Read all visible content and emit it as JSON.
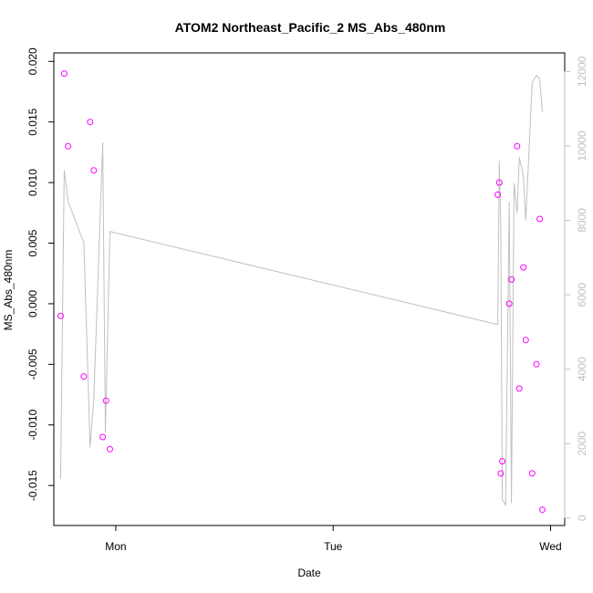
{
  "chart_data": {
    "type": "scatter",
    "title": "ATOM2 Northeast_Pacific_2 MS_Abs_480nm",
    "xlabel": "Date",
    "ylabel": "MS_Abs_480nm",
    "x_tick_labels": [
      "Mon",
      "Tue",
      "Wed"
    ],
    "x_ticks_days": [
      0,
      1,
      2
    ],
    "xlim_days": [
      -0.285,
      2.065
    ],
    "ylim": [
      -0.0183,
      0.0207
    ],
    "y_ticks": [
      -0.015,
      -0.01,
      -0.005,
      0.0,
      0.005,
      0.01,
      0.015,
      0.02
    ],
    "y_tick_labels": [
      "-0.015",
      "-0.010",
      "-0.005",
      "0.000",
      "0.005",
      "0.010",
      "0.015",
      "0.020"
    ],
    "y2lim": [
      -200,
      12500
    ],
    "y2_ticks": [
      0,
      2000,
      4000,
      6000,
      8000,
      10000,
      12000
    ],
    "y2_tick_labels": [
      "0",
      "2000",
      "4000",
      "6000",
      "8000",
      "10000",
      "12000"
    ],
    "grid": false,
    "series": [
      {
        "kind": "points",
        "color": "#ff00ff",
        "x_days": [
          -0.254,
          -0.237,
          -0.219,
          -0.147,
          -0.118,
          -0.101,
          -0.06,
          -0.045,
          -0.027,
          1.757,
          1.764,
          1.771,
          1.778,
          1.81,
          1.82,
          1.846,
          1.856,
          1.875,
          1.886,
          1.915,
          1.935,
          1.95,
          1.962
        ],
        "y": [
          -0.001,
          0.019,
          0.013,
          -0.006,
          0.015,
          0.011,
          -0.011,
          -0.008,
          -0.012,
          0.009,
          0.01,
          -0.014,
          -0.013,
          0.0,
          0.002,
          0.013,
          -0.007,
          0.003,
          -0.003,
          -0.014,
          -0.005,
          0.007,
          -0.017
        ]
      },
      {
        "kind": "line",
        "axis": "secondary",
        "color": "#c0c0c0",
        "x_days": [
          -0.254,
          -0.237,
          -0.219,
          -0.147,
          -0.118,
          -0.101,
          -0.06,
          -0.048,
          -0.027,
          1.757,
          1.764,
          1.771,
          1.778,
          1.793,
          1.81,
          1.82,
          1.832,
          1.846,
          1.856,
          1.875,
          1.886,
          1.915,
          1.935,
          1.95,
          1.962
        ],
        "y": [
          1050,
          9350,
          8500,
          7400,
          1900,
          3200,
          10100,
          2300,
          7700,
          5200,
          9600,
          7800,
          500,
          350,
          8500,
          400,
          9000,
          8200,
          9700,
          9200,
          8000,
          11700,
          11900,
          11800,
          10900
        ]
      }
    ]
  }
}
